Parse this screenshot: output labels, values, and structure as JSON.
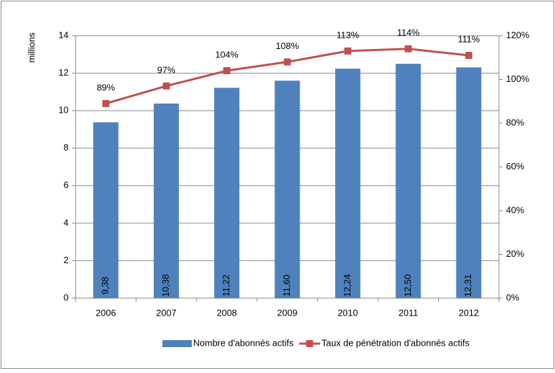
{
  "chart_data": {
    "type": "bar",
    "y_label": "millions",
    "categories": [
      "2006",
      "2007",
      "2008",
      "2009",
      "2010",
      "2011",
      "2012"
    ],
    "series": [
      {
        "name": "Nombre d'abonnés actifs",
        "type": "bar",
        "color": "#4f81bd",
        "values": [
          9.38,
          10.38,
          11.22,
          11.6,
          12.24,
          12.5,
          12.31
        ],
        "value_labels": [
          "9,38",
          "10,38",
          "11,22",
          "11,60",
          "12,24",
          "12,50",
          "12,31"
        ]
      },
      {
        "name": "Taux de pénétration d'abonnés actifs",
        "type": "line",
        "axis": "y2",
        "color": "#c0504d",
        "values": [
          89,
          97,
          104,
          108,
          113,
          114,
          111
        ],
        "value_labels": [
          "89%",
          "97%",
          "104%",
          "108%",
          "113%",
          "114%",
          "111%"
        ]
      }
    ],
    "ylim": [
      0,
      14
    ],
    "yticks": [
      0,
      2,
      4,
      6,
      8,
      10,
      12,
      14
    ],
    "y2lim": [
      0,
      120
    ],
    "y2ticks": [
      {
        "value": 0,
        "label": "0%"
      },
      {
        "value": 20,
        "label": "20%"
      },
      {
        "value": 40,
        "label": "40%"
      },
      {
        "value": 60,
        "label": "60%"
      },
      {
        "value": 80,
        "label": "80%"
      },
      {
        "value": 100,
        "label": "100%"
      },
      {
        "value": 120,
        "label": "120%"
      }
    ],
    "grid": true,
    "legend": "bottom"
  }
}
